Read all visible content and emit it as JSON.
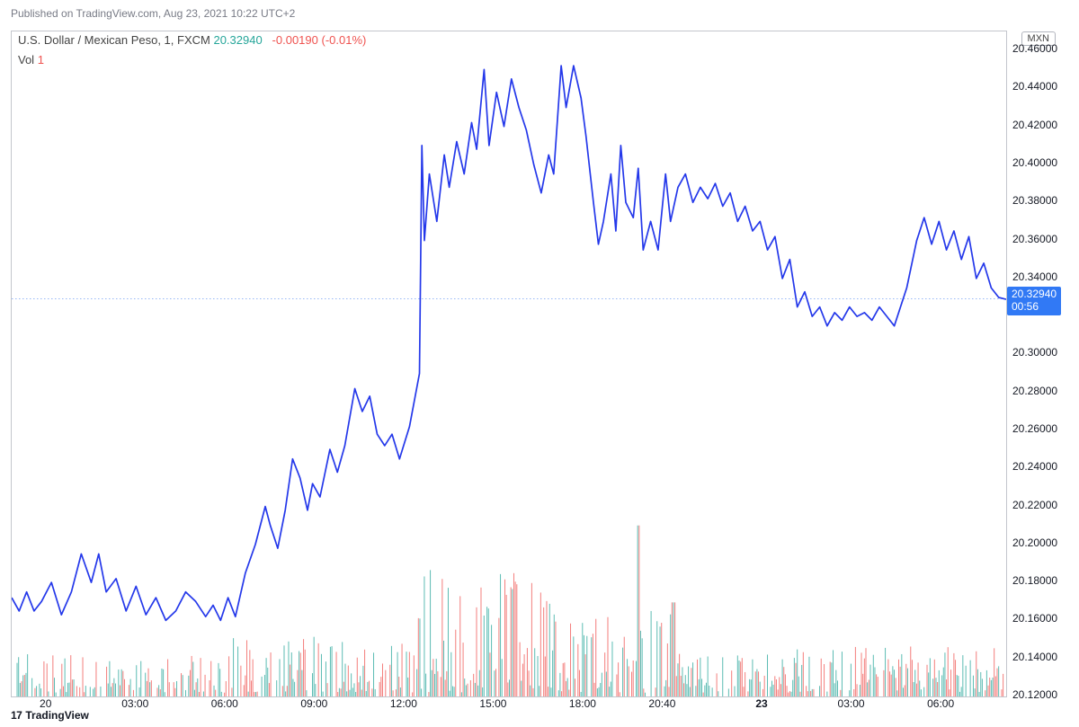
{
  "published_text": "Published on TradingView.com, Aug 23, 2021 10:22 UTC+2",
  "ticker": "U.S. Dollar / Mexican Peso, 1, FXCM",
  "last_price": "20.32940",
  "change_abs": "-0.00190",
  "change_pct": "(-0.01%)",
  "vol_label": "Vol",
  "vol_value": "1",
  "currency_badge": "MXN",
  "price_label_main": "20.32940",
  "price_label_sub": "00:56",
  "footer_brand": "TradingView",
  "chart": {
    "type": "line",
    "line_color": "#2438ea",
    "line_width": 1.7,
    "background_color": "#ffffff",
    "border_color": "#c3c6cd",
    "grid_color": "#e0e3eb",
    "xlim": [
      0,
      2000
    ],
    "ylim": [
      20.12,
      20.47
    ],
    "y_ticks": [
      {
        "v": 20.46,
        "l": "20.46000"
      },
      {
        "v": 20.44,
        "l": "20.44000"
      },
      {
        "v": 20.42,
        "l": "20.42000"
      },
      {
        "v": 20.4,
        "l": "20.40000"
      },
      {
        "v": 20.38,
        "l": "20.38000"
      },
      {
        "v": 20.36,
        "l": "20.36000"
      },
      {
        "v": 20.34,
        "l": "20.34000"
      },
      {
        "v": 20.3294,
        "l": "__PRICE_LABEL__"
      },
      {
        "v": 20.3,
        "l": "20.30000"
      },
      {
        "v": 20.28,
        "l": "20.28000"
      },
      {
        "v": 20.26,
        "l": "20.26000"
      },
      {
        "v": 20.24,
        "l": "20.24000"
      },
      {
        "v": 20.22,
        "l": "20.22000"
      },
      {
        "v": 20.2,
        "l": "20.20000"
      },
      {
        "v": 20.18,
        "l": "20.18000"
      },
      {
        "v": 20.16,
        "l": "20.16000"
      },
      {
        "v": 20.14,
        "l": "20.14000"
      },
      {
        "v": 20.12,
        "l": "20.12000"
      }
    ],
    "x_ticks": [
      {
        "p": 70,
        "l": "20",
        "bold": false
      },
      {
        "p": 250,
        "l": "03:00"
      },
      {
        "p": 430,
        "l": "06:00"
      },
      {
        "p": 610,
        "l": "09:00"
      },
      {
        "p": 790,
        "l": "12:00"
      },
      {
        "p": 970,
        "l": "15:00"
      },
      {
        "p": 1150,
        "l": "18:00"
      },
      {
        "p": 1310,
        "l": "20:40"
      },
      {
        "p": 1510,
        "l": "23",
        "bold": true
      },
      {
        "p": 1690,
        "l": "03:00"
      },
      {
        "p": 1870,
        "l": "06:00"
      }
    ],
    "series": [
      [
        0,
        20.172
      ],
      [
        15,
        20.165
      ],
      [
        30,
        20.175
      ],
      [
        45,
        20.165
      ],
      [
        60,
        20.17
      ],
      [
        80,
        20.18
      ],
      [
        100,
        20.163
      ],
      [
        120,
        20.175
      ],
      [
        140,
        20.195
      ],
      [
        160,
        20.18
      ],
      [
        175,
        20.195
      ],
      [
        190,
        20.175
      ],
      [
        210,
        20.182
      ],
      [
        230,
        20.165
      ],
      [
        250,
        20.178
      ],
      [
        270,
        20.163
      ],
      [
        290,
        20.172
      ],
      [
        310,
        20.16
      ],
      [
        330,
        20.165
      ],
      [
        350,
        20.175
      ],
      [
        370,
        20.17
      ],
      [
        390,
        20.162
      ],
      [
        405,
        20.168
      ],
      [
        420,
        20.16
      ],
      [
        435,
        20.172
      ],
      [
        450,
        20.162
      ],
      [
        470,
        20.185
      ],
      [
        490,
        20.2
      ],
      [
        510,
        20.22
      ],
      [
        520,
        20.21
      ],
      [
        535,
        20.198
      ],
      [
        550,
        20.218
      ],
      [
        565,
        20.245
      ],
      [
        580,
        20.235
      ],
      [
        595,
        20.218
      ],
      [
        605,
        20.232
      ],
      [
        620,
        20.225
      ],
      [
        640,
        20.25
      ],
      [
        655,
        20.238
      ],
      [
        670,
        20.252
      ],
      [
        690,
        20.282
      ],
      [
        705,
        20.27
      ],
      [
        720,
        20.278
      ],
      [
        735,
        20.258
      ],
      [
        750,
        20.252
      ],
      [
        765,
        20.258
      ],
      [
        780,
        20.245
      ],
      [
        800,
        20.262
      ],
      [
        820,
        20.29
      ],
      [
        825,
        20.41
      ],
      [
        830,
        20.36
      ],
      [
        840,
        20.395
      ],
      [
        855,
        20.37
      ],
      [
        870,
        20.405
      ],
      [
        880,
        20.388
      ],
      [
        895,
        20.412
      ],
      [
        910,
        20.395
      ],
      [
        925,
        20.422
      ],
      [
        935,
        20.408
      ],
      [
        950,
        20.45
      ],
      [
        960,
        20.41
      ],
      [
        975,
        20.438
      ],
      [
        990,
        20.42
      ],
      [
        1005,
        20.445
      ],
      [
        1020,
        20.43
      ],
      [
        1035,
        20.418
      ],
      [
        1050,
        20.4
      ],
      [
        1065,
        20.385
      ],
      [
        1080,
        20.405
      ],
      [
        1090,
        20.395
      ],
      [
        1105,
        20.452
      ],
      [
        1115,
        20.43
      ],
      [
        1130,
        20.452
      ],
      [
        1145,
        20.435
      ],
      [
        1155,
        20.415
      ],
      [
        1170,
        20.38
      ],
      [
        1180,
        20.358
      ],
      [
        1190,
        20.37
      ],
      [
        1205,
        20.395
      ],
      [
        1215,
        20.365
      ],
      [
        1225,
        20.41
      ],
      [
        1235,
        20.38
      ],
      [
        1250,
        20.372
      ],
      [
        1260,
        20.398
      ],
      [
        1270,
        20.355
      ],
      [
        1285,
        20.37
      ],
      [
        1300,
        20.355
      ],
      [
        1315,
        20.395
      ],
      [
        1325,
        20.37
      ],
      [
        1340,
        20.388
      ],
      [
        1355,
        20.395
      ],
      [
        1370,
        20.38
      ],
      [
        1385,
        20.388
      ],
      [
        1400,
        20.382
      ],
      [
        1415,
        20.39
      ],
      [
        1430,
        20.378
      ],
      [
        1445,
        20.385
      ],
      [
        1460,
        20.37
      ],
      [
        1475,
        20.378
      ],
      [
        1490,
        20.365
      ],
      [
        1505,
        20.37
      ],
      [
        1520,
        20.355
      ],
      [
        1535,
        20.362
      ],
      [
        1550,
        20.34
      ],
      [
        1565,
        20.35
      ],
      [
        1580,
        20.325
      ],
      [
        1595,
        20.333
      ],
      [
        1610,
        20.32
      ],
      [
        1625,
        20.325
      ],
      [
        1640,
        20.315
      ],
      [
        1655,
        20.322
      ],
      [
        1670,
        20.318
      ],
      [
        1685,
        20.325
      ],
      [
        1700,
        20.32
      ],
      [
        1715,
        20.322
      ],
      [
        1730,
        20.318
      ],
      [
        1745,
        20.325
      ],
      [
        1760,
        20.32
      ],
      [
        1775,
        20.315
      ],
      [
        1800,
        20.335
      ],
      [
        1820,
        20.36
      ],
      [
        1835,
        20.372
      ],
      [
        1850,
        20.358
      ],
      [
        1865,
        20.37
      ],
      [
        1880,
        20.355
      ],
      [
        1895,
        20.365
      ],
      [
        1910,
        20.35
      ],
      [
        1925,
        20.362
      ],
      [
        1940,
        20.34
      ],
      [
        1955,
        20.348
      ],
      [
        1970,
        20.335
      ],
      [
        1985,
        20.33
      ],
      [
        2000,
        20.329
      ]
    ],
    "current_price_line": {
      "v": 20.3294,
      "color": "#5b8def"
    }
  },
  "volume": {
    "up_color": "#26a69a",
    "down_color": "#ef5350",
    "baseline_y": 20.12,
    "max_height": 0.09,
    "bar_width": 1.0,
    "bars": "RANDOM_GENERATED"
  }
}
